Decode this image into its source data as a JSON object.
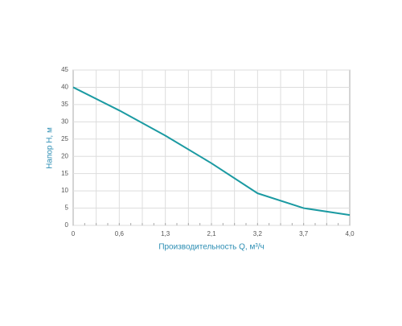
{
  "chart_data": {
    "type": "line",
    "x_label": "Производительность Q, м³/ч",
    "y_label": "Напор H, м",
    "categories": [
      "0",
      "0,6",
      "1,3",
      "2,1",
      "3,2",
      "3,7",
      "4,0"
    ],
    "series": [
      {
        "color": "#1b9aa2",
        "values": [
          40,
          33.3,
          26,
          18,
          9.3,
          5,
          3
        ]
      }
    ],
    "ylim": [
      0,
      45
    ],
    "yticks": [
      0,
      5,
      10,
      15,
      20,
      25,
      30,
      35,
      40,
      45
    ],
    "grid": true
  }
}
